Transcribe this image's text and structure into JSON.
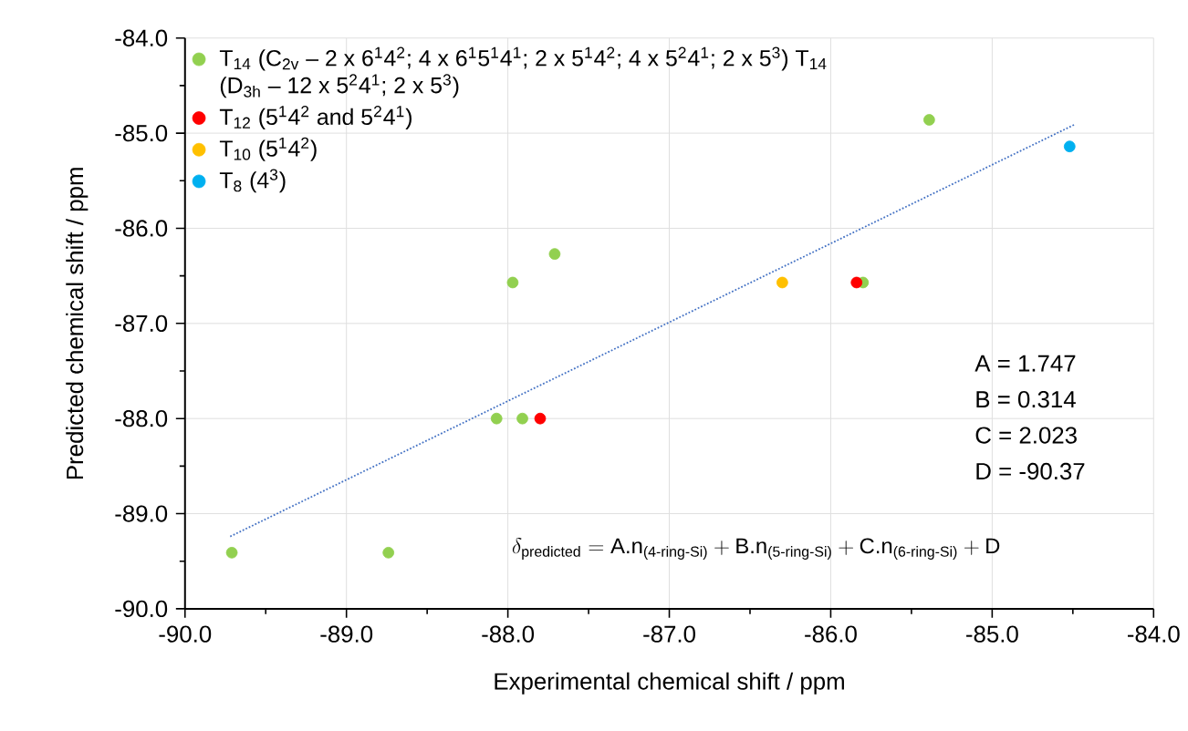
{
  "chart_data": {
    "type": "scatter",
    "xlabel": "Experimental chemical shift / ppm",
    "ylabel": "Predicted chemical shift / ppm",
    "xlim": [
      -90,
      -84
    ],
    "ylim": [
      -90,
      -84
    ],
    "xticks": [
      {
        "value": -90,
        "label": "-90.0"
      },
      {
        "value": -89,
        "label": "-89.0"
      },
      {
        "value": -88,
        "label": "-88.0"
      },
      {
        "value": -87,
        "label": "-87.0"
      },
      {
        "value": -86,
        "label": "-86.0"
      },
      {
        "value": -85,
        "label": "-85.0"
      },
      {
        "value": -84,
        "label": "-84.0"
      }
    ],
    "yticks": [
      {
        "value": -90,
        "label": "-90.0"
      },
      {
        "value": -89,
        "label": "-89.0"
      },
      {
        "value": -88,
        "label": "-88.0"
      },
      {
        "value": -87,
        "label": "-87.0"
      },
      {
        "value": -86,
        "label": "-86.0"
      },
      {
        "value": -85,
        "label": "-85.0"
      },
      {
        "value": -84,
        "label": "-84.0"
      }
    ],
    "grid": true,
    "legend": "top left",
    "marker": "circle",
    "series": [
      {
        "name": "T$_{14}$ (C$_{2v}$ – 2 x 6$^{1}$4$^{2}$; 4 x 6$^{1}$5$^{1}$4$^{1}$; 2 x 5$^{1}$4$^{2}$; 4 x 5$^{2}$4$^{1}$; 2 x 5$^{3}$) T$_{14}$ (D$_{3h}$ – 12 x 5$^{2}$4$^{1}$; 2 x 5$^{3}$)",
        "color": "#92d050",
        "x": [
          -89.71,
          -88.74,
          -87.97,
          -87.71,
          -88.07,
          -87.91,
          -85.8,
          -85.39
        ],
        "values": [
          -89.41,
          -89.41,
          -86.57,
          -86.27,
          -88.0,
          -88.0,
          -86.57,
          -84.86
        ]
      },
      {
        "name": "T$_{12}$ (5$^{1}$4$^{2}$ and 5$^{2}$4$^{1}$)",
        "color": "#ff0000",
        "x": [
          -87.8,
          -85.84
        ],
        "values": [
          -88.0,
          -86.57
        ]
      },
      {
        "name": "T$_{10}$ (5$^{1}$4$^{2}$)",
        "color": "#ffc000",
        "x": [
          -86.3
        ],
        "values": [
          -86.57
        ]
      },
      {
        "name": "T$_{8}$ (4$^{3}$)",
        "color": "#00b0f0",
        "x": [
          -84.52
        ],
        "values": [
          -85.14
        ]
      },
      {
        "type": "line",
        "line_style": "dotted",
        "marker": "none",
        "color": "#4472c4",
        "x": [
          -89.72,
          -84.49
        ],
        "values": [
          -89.24,
          -84.91
        ]
      }
    ],
    "annotations": [
      "A = 1.747",
      "B = 0.314",
      "C = 2.023",
      "D = -90.37",
      "\\delta_{\\text{predicted}} = \\text{A.n}_{\\text{(4-ring-Si)}} + \\text{B.n}_{\\text{(5-ring-Si)}} + \\text{C.n}_{\\text{(6-ring-Si)}} + \\text{D}"
    ]
  }
}
